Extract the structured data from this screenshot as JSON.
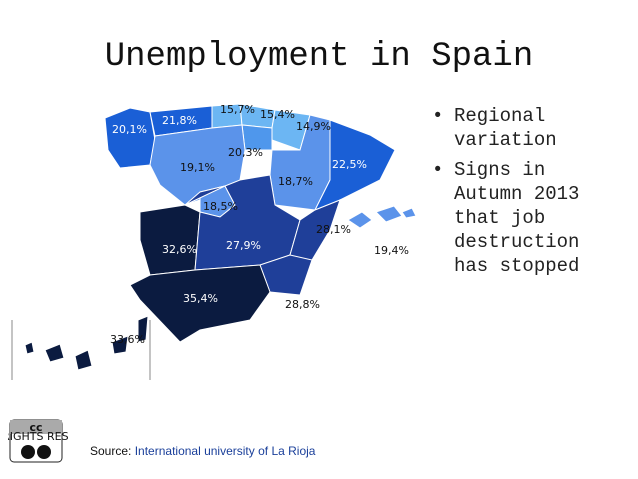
{
  "title": "Unemployment in Spain",
  "bullets": [
    "Regional variation",
    "Signs in Autumn 2013 that job destruction has stopped"
  ],
  "map": {
    "regions": [
      {
        "label": "20,1%"
      },
      {
        "label": "21,8%"
      },
      {
        "label": "15,7%"
      },
      {
        "label": "15,4%"
      },
      {
        "label": "14,9%"
      },
      {
        "label": "20,3%"
      },
      {
        "label": "19,1%"
      },
      {
        "label": "22,5%"
      },
      {
        "label": "18,7%"
      },
      {
        "label": "18,5%"
      },
      {
        "label": "32,6%"
      },
      {
        "label": "27,9%"
      },
      {
        "label": "28,1%"
      },
      {
        "label": "19,4%"
      },
      {
        "label": "35,4%"
      },
      {
        "label": "28,8%"
      },
      {
        "label": "33,6%"
      }
    ]
  },
  "license": {
    "badge": "cc",
    "text": "SOME RIGHTS RESERVED"
  },
  "source": {
    "prefix": "Source:",
    "link": "International university of La Rioja"
  }
}
